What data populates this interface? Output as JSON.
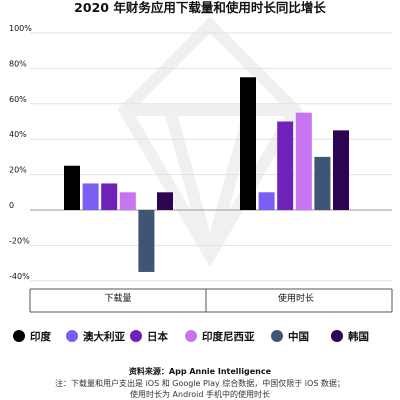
{
  "chart_data": {
    "type": "bar",
    "title": "2020 年财务应用下载量和使用时长同比增长",
    "categories": [
      "下载量",
      "使用时长"
    ],
    "series": [
      {
        "name": "印度",
        "color": "#000000",
        "values": [
          25,
          75
        ]
      },
      {
        "name": "澳大利亚",
        "color": "#7b5cf5",
        "values": [
          15,
          10
        ]
      },
      {
        "name": "日本",
        "color": "#7022b8",
        "values": [
          15,
          50
        ]
      },
      {
        "name": "印度尼西亚",
        "color": "#c774f2",
        "values": [
          10,
          55
        ]
      },
      {
        "name": "中国",
        "color": "#3e5575",
        "values": [
          -35,
          30
        ]
      },
      {
        "name": "韩国",
        "color": "#2d0452",
        "values": [
          10,
          45
        ]
      }
    ],
    "yticks": [
      100,
      80,
      60,
      40,
      20,
      0,
      -20,
      -40
    ],
    "ytick_labels": [
      "100%",
      "80%",
      "60%",
      "40%",
      "20%",
      "0",
      "-20%",
      "-40%"
    ],
    "ylim": [
      -45,
      100
    ],
    "grid": true,
    "legend_position": "bottom"
  },
  "footer": {
    "source": "资料来源：App Annie Intelligence",
    "note_line1": "注：下载量和用户支出是 iOS 和 Google Play 综合数据，中国仅限于 iOS 数据；",
    "note_line2": "使用时长为 Android 手机中的使用时长"
  },
  "watermark": {
    "icon": "diamond-gem-watermark"
  }
}
